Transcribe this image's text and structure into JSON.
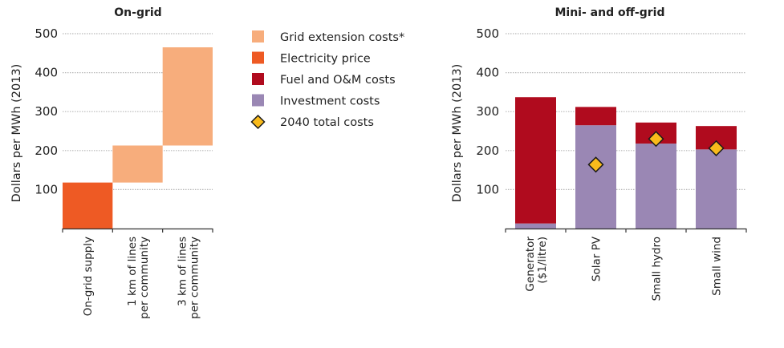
{
  "colors": {
    "grid_extension": "#f7ad7c",
    "electricity": "#ee5a24",
    "fuel_om": "#b00b1e",
    "investment": "#9a87b4",
    "diamond_fill": "#f9bb1c",
    "diamond_stroke": "#1a1a1a",
    "gridline": "#b8b8b8",
    "axis": "#333333"
  },
  "legend": [
    {
      "label": "Grid extension costs*",
      "key": "grid_extension",
      "marker": "square"
    },
    {
      "label": "Electricity price",
      "key": "electricity",
      "marker": "square"
    },
    {
      "label": "Fuel and O&M costs",
      "key": "fuel_om",
      "marker": "square"
    },
    {
      "label": "Investment costs",
      "key": "investment",
      "marker": "square"
    },
    {
      "label": "2040 total costs",
      "key": "diamond_fill",
      "marker": "diamond"
    }
  ],
  "chart_data": [
    {
      "type": "bar",
      "subtype": "waterfall",
      "title": "On-grid",
      "ylabel": "Dollars per MWh (2013)",
      "ylim": [
        0,
        500
      ],
      "yticks": [
        "100",
        "200",
        "300",
        "400",
        "500"
      ],
      "ytick_values": [
        100,
        200,
        300,
        400,
        500
      ],
      "grid": true,
      "categories": [
        [
          "On-grid supply"
        ],
        [
          "1 km of lines",
          "per community"
        ],
        [
          "3 km of lines",
          "per community"
        ]
      ],
      "series": [
        {
          "name": "Electricity price",
          "key": "electricity",
          "base": [
            0,
            null,
            null
          ],
          "values": [
            118,
            null,
            null
          ]
        },
        {
          "name": "Grid extension costs*",
          "key": "grid_extension",
          "base": [
            null,
            118,
            213
          ],
          "values": [
            null,
            95,
            252
          ]
        }
      ]
    },
    {
      "type": "bar",
      "subtype": "stacked",
      "title": "Mini- and off-grid",
      "ylabel": "Dollars per MWh (2013)",
      "ylim": [
        0,
        500
      ],
      "yticks": [
        "100",
        "200",
        "300",
        "400",
        "500"
      ],
      "ytick_values": [
        100,
        200,
        300,
        400,
        500
      ],
      "grid": true,
      "categories": [
        [
          "Generator",
          "($1/litre)"
        ],
        [
          "Solar PV"
        ],
        [
          "Small hydro"
        ],
        [
          "Small wind"
        ]
      ],
      "series": [
        {
          "name": "Investment costs",
          "key": "investment",
          "values": [
            13,
            265,
            218,
            203
          ]
        },
        {
          "name": "Fuel and O&M costs",
          "key": "fuel_om",
          "values": [
            324,
            47,
            54,
            60
          ]
        }
      ],
      "markers": {
        "name": "2040 total costs",
        "values": [
          null,
          164,
          230,
          206
        ]
      }
    }
  ]
}
